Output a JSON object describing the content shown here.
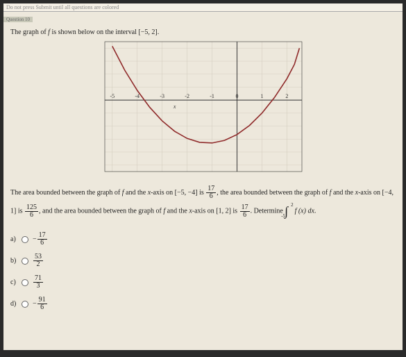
{
  "header": {
    "warning": "Do not press Submit until all questions are colored",
    "tab": "Question 10"
  },
  "prompt": {
    "pre": "The graph of ",
    "fn": "f",
    "mid": " is shown below on the interval ",
    "interval": "[−5, 2]",
    "post": "."
  },
  "chart": {
    "type": "line",
    "xlim": [
      -5.3,
      2.6
    ],
    "ylim": [
      -11,
      9
    ],
    "xtick_labels": [
      "-5",
      "-4",
      "-3",
      "-2",
      "-1",
      "0",
      "1",
      "2"
    ],
    "xtick_vals": [
      -5,
      -4,
      -3,
      -2,
      -1,
      0,
      1,
      2
    ],
    "xaxis_label": "x",
    "curve_color": "#8f2a2a",
    "axis_color": "#333333",
    "grid_color": "#cfc9bb",
    "background": "#ede8dc",
    "tick_font_size": 8,
    "curve_points": [
      [
        -5.0,
        8.3
      ],
      [
        -4.5,
        4.6
      ],
      [
        -4.0,
        1.5
      ],
      [
        -3.5,
        -1.1
      ],
      [
        -3.0,
        -3.2
      ],
      [
        -2.5,
        -4.8
      ],
      [
        -2.0,
        -5.9
      ],
      [
        -1.5,
        -6.5
      ],
      [
        -1.0,
        -6.6
      ],
      [
        -0.5,
        -6.2
      ],
      [
        0.0,
        -5.3
      ],
      [
        0.5,
        -3.9
      ],
      [
        1.0,
        -2.0
      ],
      [
        1.5,
        0.4
      ],
      [
        2.0,
        3.3
      ],
      [
        2.3,
        5.5
      ],
      [
        2.5,
        8.0
      ]
    ]
  },
  "body": {
    "seg1": "The area bounded between the graph of ",
    "f": "f",
    "seg2": " and the ",
    "x": "x",
    "seg3": "-axis on ",
    "int1": "[−5, −4]",
    "seg4": " is ",
    "frac1": {
      "num": "17",
      "den": "6"
    },
    "seg5": ", the area bounded between the graph of ",
    "seg6": " and the ",
    "seg7": "-axis on ",
    "int2": "[−4, 1]",
    "seg8": " is ",
    "frac2": {
      "num": "125",
      "den": "6"
    },
    "seg9": ", and the area bounded between the graph of ",
    "seg10": " and the ",
    "seg11": "-axis on ",
    "int3": "[1, 2]",
    "seg12": " is ",
    "frac3": {
      "num": "17",
      "den": "6"
    },
    "seg13": ". Determine ",
    "integral": {
      "lower": "-5",
      "upper": "2",
      "integrand": "f (x) dx"
    },
    "seg14": "."
  },
  "options": [
    {
      "label": "a)",
      "neg": "− ",
      "num": "17",
      "den": "6"
    },
    {
      "label": "b)",
      "neg": "",
      "num": "53",
      "den": "2"
    },
    {
      "label": "c)",
      "neg": "",
      "num": "71",
      "den": "3"
    },
    {
      "label": "d)",
      "neg": "− ",
      "num": "91",
      "den": "6"
    }
  ]
}
